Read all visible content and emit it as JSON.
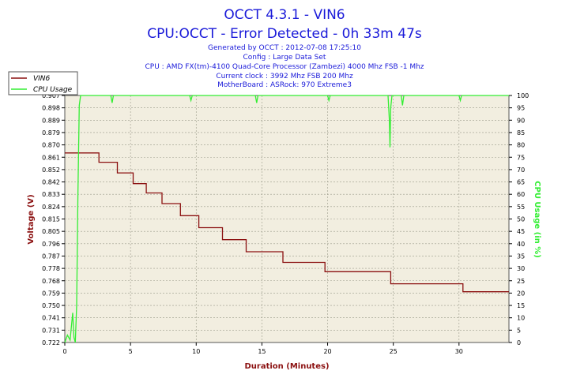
{
  "header": {
    "title_line1": "OCCT 4.3.1 - VIN6",
    "title_line2": "CPU:OCCT - Error Detected - 0h 33m 47s",
    "generated": "Generated by OCCT : 2012-07-08 17:25:10",
    "config": "Config : Large Data Set",
    "cpu": "CPU : AMD FX(tm)-4100 Quad-Core Processor (Zambezi) 4000 Mhz FSB -1 Mhz",
    "clock": "Current clock : 3992 Mhz FSB 200 Mhz",
    "motherboard": "MotherBoard : ASRock: 970 Extreme3"
  },
  "colors": {
    "vin6": "#8b1010",
    "cpu_usage": "#33ee33",
    "plot_bg": "#f2eee0",
    "grid": "#9a9a8a",
    "title": "#1a1ad9"
  },
  "chart_data": {
    "type": "line",
    "xlabel": "Duration (Minutes)",
    "ylabel_left": "Voltage (V)",
    "ylabel_right": "CPU Usage (in %)",
    "xlim": [
      0,
      33.8
    ],
    "ylim_left": [
      0.722,
      0.907
    ],
    "ylim_right": [
      0,
      100
    ],
    "x_ticks": [
      "0",
      "5",
      "10",
      "15",
      "20",
      "25",
      "30"
    ],
    "y_ticks_left": [
      "0.907",
      "0.898",
      "0.889",
      "0.879",
      "0.870",
      "0.861",
      "0.852",
      "0.842",
      "0.833",
      "0.824",
      "0.815",
      "0.805",
      "0.796",
      "0.787",
      "0.778",
      "0.768",
      "0.759",
      "0.750",
      "0.741",
      "0.731",
      "0.722"
    ],
    "y_ticks_right": [
      "100",
      "95",
      "90",
      "85",
      "80",
      "75",
      "70",
      "65",
      "60",
      "55",
      "50",
      "45",
      "40",
      "35",
      "30",
      "25",
      "20",
      "15",
      "10",
      "5",
      "0"
    ],
    "legend_position": "top-left",
    "grid": true,
    "series": [
      {
        "name": "VIN6",
        "axis": "left",
        "step": true,
        "points": [
          [
            0.0,
            0.864
          ],
          [
            2.6,
            0.864
          ],
          [
            2.6,
            0.857
          ],
          [
            4.0,
            0.857
          ],
          [
            4.0,
            0.849
          ],
          [
            5.2,
            0.849
          ],
          [
            5.2,
            0.841
          ],
          [
            6.2,
            0.841
          ],
          [
            6.2,
            0.834
          ],
          [
            7.4,
            0.834
          ],
          [
            7.4,
            0.826
          ],
          [
            8.8,
            0.826
          ],
          [
            8.8,
            0.817
          ],
          [
            10.2,
            0.817
          ],
          [
            10.2,
            0.808
          ],
          [
            12.0,
            0.808
          ],
          [
            12.0,
            0.799
          ],
          [
            13.8,
            0.799
          ],
          [
            13.8,
            0.79
          ],
          [
            16.6,
            0.79
          ],
          [
            16.6,
            0.782
          ],
          [
            19.8,
            0.782
          ],
          [
            19.8,
            0.775
          ],
          [
            24.8,
            0.775
          ],
          [
            24.8,
            0.766
          ],
          [
            30.3,
            0.766
          ],
          [
            30.3,
            0.76
          ],
          [
            33.8,
            0.76
          ]
        ]
      },
      {
        "name": "CPU Usage",
        "axis": "right",
        "points": [
          [
            0.0,
            0
          ],
          [
            0.2,
            3
          ],
          [
            0.4,
            1
          ],
          [
            0.6,
            12
          ],
          [
            0.7,
            2
          ],
          [
            0.8,
            0
          ],
          [
            0.9,
            15
          ],
          [
            1.0,
            60
          ],
          [
            1.1,
            96
          ],
          [
            1.2,
            100
          ],
          [
            3.5,
            100
          ],
          [
            3.6,
            97
          ],
          [
            3.7,
            100
          ],
          [
            9.5,
            100
          ],
          [
            9.6,
            98
          ],
          [
            9.7,
            100
          ],
          [
            14.5,
            100
          ],
          [
            14.6,
            97
          ],
          [
            14.7,
            100
          ],
          [
            20.0,
            100
          ],
          [
            20.1,
            98
          ],
          [
            20.2,
            100
          ],
          [
            24.6,
            100
          ],
          [
            24.7,
            90
          ],
          [
            24.75,
            79
          ],
          [
            24.8,
            95
          ],
          [
            24.9,
            100
          ],
          [
            25.6,
            100
          ],
          [
            25.7,
            96
          ],
          [
            25.8,
            100
          ],
          [
            30.0,
            100
          ],
          [
            30.1,
            98
          ],
          [
            30.2,
            100
          ],
          [
            33.8,
            100
          ]
        ]
      }
    ]
  }
}
